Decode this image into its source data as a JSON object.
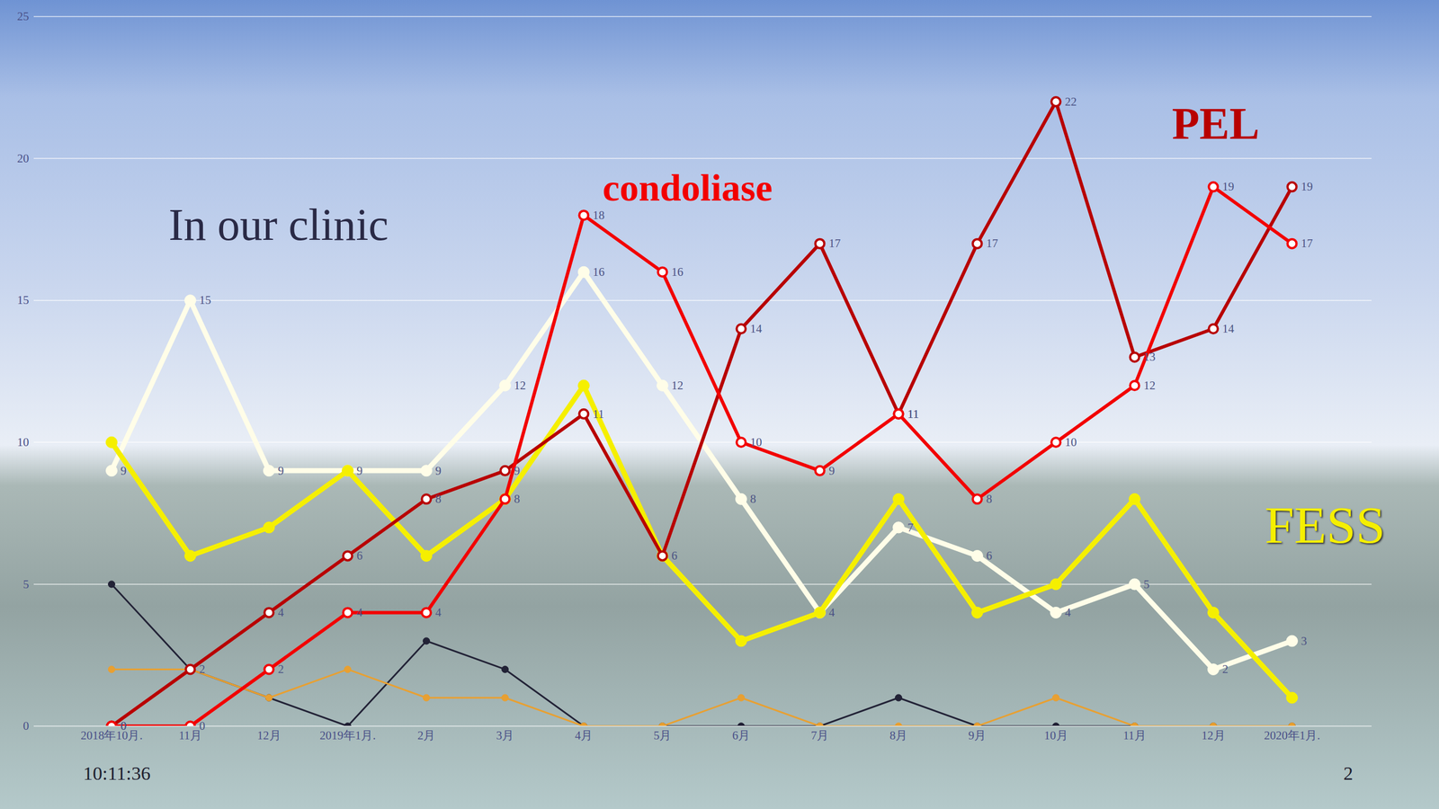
{
  "chart_data": {
    "type": "line",
    "categories": [
      "2018年10月.",
      "11月",
      "12月",
      "2019年1月.",
      "2月",
      "3月",
      "4月",
      "5月",
      "6月",
      "7月",
      "8月",
      "9月",
      "10月",
      "11月",
      "12月",
      "2020年1月."
    ],
    "series": [
      {
        "color": "#222236",
        "marker": "circle",
        "data_labels": false,
        "values": [
          5,
          2,
          1,
          0,
          3,
          2,
          0,
          0,
          0,
          0,
          1,
          0,
          0,
          0,
          0,
          0
        ]
      },
      {
        "color": "#e8a032",
        "marker": "circle",
        "data_labels": false,
        "values": [
          2,
          2,
          1,
          2,
          1,
          1,
          0,
          0,
          1,
          0,
          0,
          0,
          1,
          0,
          0,
          0
        ]
      },
      {
        "color": "#fffde8",
        "marker": "circle",
        "data_labels": true,
        "values": [
          9,
          15,
          9,
          9,
          9,
          12,
          16,
          12,
          8,
          4,
          7,
          6,
          4,
          5,
          2,
          3
        ]
      },
      {
        "name": "FESS",
        "color": "#f5ef00",
        "marker": "circle",
        "data_labels": false,
        "values": [
          10,
          6,
          7,
          9,
          6,
          8,
          12,
          6,
          3,
          4,
          8,
          4,
          5,
          8,
          4,
          1
        ]
      },
      {
        "name": "PEL",
        "color": "#b80000",
        "marker": "circle",
        "data_labels": true,
        "values": [
          0,
          2,
          4,
          6,
          8,
          9,
          11,
          6,
          14,
          17,
          11,
          17,
          22,
          13,
          14,
          19
        ]
      },
      {
        "name": "condoliase",
        "color": "#f20000",
        "marker": "circle",
        "data_labels": true,
        "values": [
          0,
          0,
          2,
          4,
          4,
          8,
          18,
          16,
          10,
          9,
          11,
          8,
          10,
          12,
          19,
          17
        ]
      }
    ],
    "annotations": [
      "In our clinic"
    ],
    "time": "10:11:36",
    "page": "2",
    "ylim": [
      0,
      25
    ],
    "yticks": [
      0,
      5,
      10,
      15,
      20,
      25
    ],
    "grid": true
  }
}
